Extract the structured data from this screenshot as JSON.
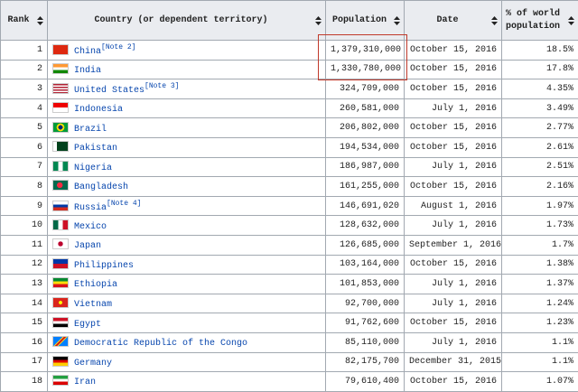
{
  "table": {
    "headers": [
      "Rank",
      "Country (or dependent territory)",
      "Population",
      "Date",
      "% of world population"
    ],
    "rows": [
      {
        "rank": "1",
        "country": "China",
        "note": "[Note 2]",
        "population": "1,379,310,000",
        "date": "October 15, 2016",
        "percent": "18.5%"
      },
      {
        "rank": "2",
        "country": "India",
        "population": "1,330,780,000",
        "date": "October 15, 2016",
        "percent": "17.8%"
      },
      {
        "rank": "3",
        "country": "United States",
        "note": "[Note 3]",
        "population": "324,709,000",
        "date": "October 15, 2016",
        "percent": "4.35%"
      },
      {
        "rank": "4",
        "country": "Indonesia",
        "population": "260,581,000",
        "date": "July 1, 2016",
        "percent": "3.49%"
      },
      {
        "rank": "5",
        "country": "Brazil",
        "population": "206,802,000",
        "date": "October 15, 2016",
        "percent": "2.77%"
      },
      {
        "rank": "6",
        "country": "Pakistan",
        "population": "194,534,000",
        "date": "October 15, 2016",
        "percent": "2.61%"
      },
      {
        "rank": "7",
        "country": "Nigeria",
        "population": "186,987,000",
        "date": "July 1, 2016",
        "percent": "2.51%"
      },
      {
        "rank": "8",
        "country": "Bangladesh",
        "population": "161,255,000",
        "date": "October 15, 2016",
        "percent": "2.16%"
      },
      {
        "rank": "9",
        "country": "Russia",
        "note": "[Note 4]",
        "population": "146,691,020",
        "date": "August 1, 2016",
        "percent": "1.97%"
      },
      {
        "rank": "10",
        "country": "Mexico",
        "population": "128,632,000",
        "date": "July 1, 2016",
        "percent": "1.73%"
      },
      {
        "rank": "11",
        "country": "Japan",
        "population": "126,685,000",
        "date": "September 1, 2016",
        "percent": "1.7%"
      },
      {
        "rank": "12",
        "country": "Philippines",
        "population": "103,164,000",
        "date": "October 15, 2016",
        "percent": "1.38%"
      },
      {
        "rank": "13",
        "country": "Ethiopia",
        "population": "101,853,000",
        "date": "July 1, 2016",
        "percent": "1.37%"
      },
      {
        "rank": "14",
        "country": "Vietnam",
        "population": "92,700,000",
        "date": "July 1, 2016",
        "percent": "1.24%"
      },
      {
        "rank": "15",
        "country": "Egypt",
        "population": "91,762,600",
        "date": "October 15, 2016",
        "percent": "1.23%"
      },
      {
        "rank": "16",
        "country": "Democratic Republic of the Congo",
        "population": "85,110,000",
        "date": "July 1, 2016",
        "percent": "1.1%"
      },
      {
        "rank": "17",
        "country": "Germany",
        "population": "82,175,700",
        "date": "December 31, 2015",
        "percent": "1.1%"
      },
      {
        "rank": "18",
        "country": "Iran",
        "population": "79,610,400",
        "date": "October 15, 2016",
        "percent": "1.07%"
      }
    ]
  }
}
